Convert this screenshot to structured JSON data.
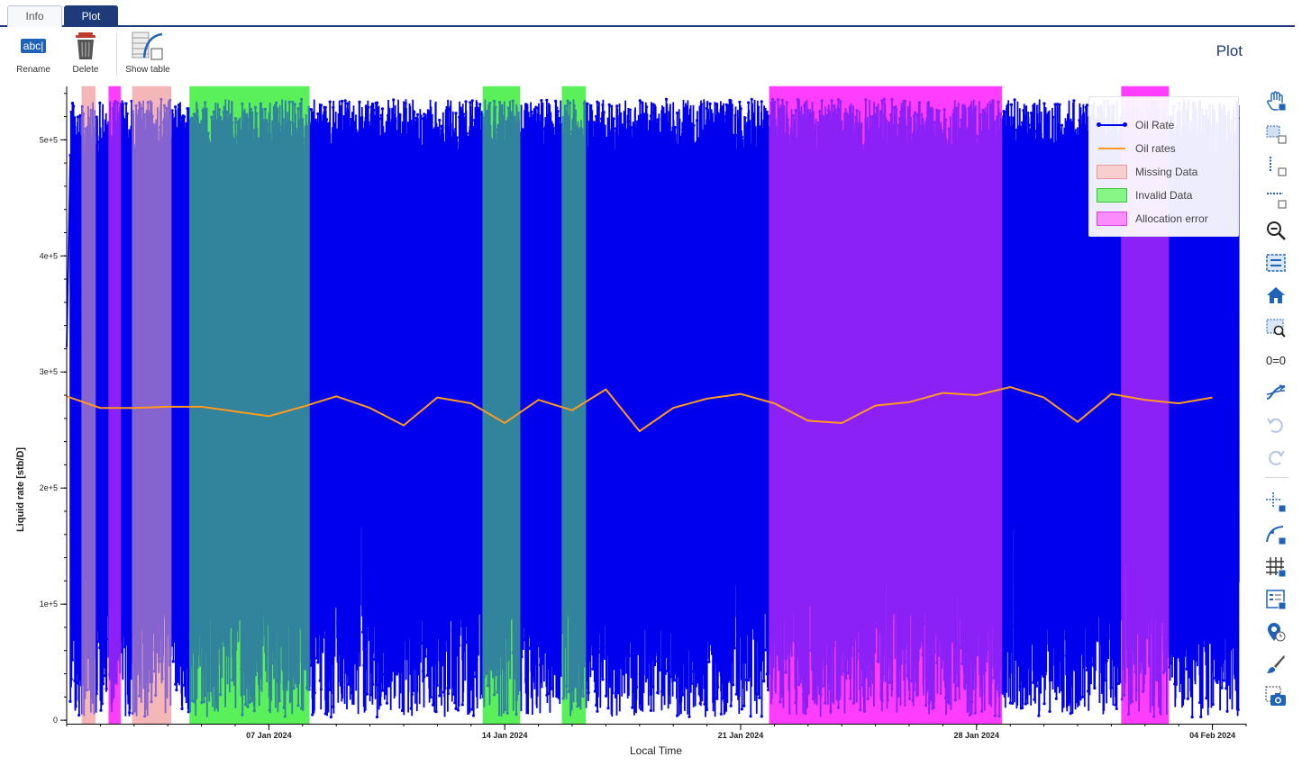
{
  "tabs": [
    {
      "label": "Info",
      "active": false
    },
    {
      "label": "Plot",
      "active": true
    }
  ],
  "toolbar": {
    "rename_label": "Rename",
    "rename_icon_text": "abc|",
    "delete_label": "Delete",
    "show_table_label": "Show table"
  },
  "page_title": "Plot",
  "sidebar_icons": [
    "pan-icon",
    "box-zoom-icon",
    "x-zoom-icon",
    "y-zoom-icon",
    "zoom-icon",
    "fit-icon",
    "home-icon",
    "reset-zoom-icon",
    "aspect-ratio-icon",
    "smooth-icon",
    "undo-icon",
    "redo-icon",
    "crosshair-icon",
    "point-select-icon",
    "grid-icon",
    "legend-icon",
    "tooltip-icon",
    "brush-icon",
    "screenshot-icon"
  ],
  "chart_data": {
    "type": "line",
    "xlabel": "Local Time",
    "ylabel": "Liquid rate [stb/D]",
    "x_range": [
      "2024-01-01",
      "2024-02-05"
    ],
    "ylim": [
      -3000,
      546000
    ],
    "x_ticks": [
      "07 Jan 2024",
      "14 Jan 2024",
      "21 Jan 2024",
      "28 Jan 2024",
      "04 Feb 2024"
    ],
    "y_ticks": [
      {
        "value": 0,
        "label": "0"
      },
      {
        "value": 100000,
        "label": "1e+5"
      },
      {
        "value": 200000,
        "label": "2e+5"
      },
      {
        "value": 300000,
        "label": "3e+5"
      },
      {
        "value": 400000,
        "label": "4e+5"
      },
      {
        "value": 500000,
        "label": "5e+5"
      }
    ],
    "colors": {
      "oil_rate": "#0000ee",
      "oil_rates": "#ff9a1f",
      "missing": "#f4b6b6",
      "invalid": "#59f059",
      "allocation": "#ff3dff"
    },
    "series": [
      {
        "name": "Oil Rate",
        "style": "line-markers",
        "description_range": [
          0,
          545000
        ],
        "approx_envelope_max": 535000
      },
      {
        "name": "Oil rates",
        "style": "line",
        "x": [
          "2024-01-01",
          "2024-01-02",
          "2024-01-03",
          "2024-01-04",
          "2024-01-05",
          "2024-01-06",
          "2024-01-07",
          "2024-01-08",
          "2024-01-09",
          "2024-01-10",
          "2024-01-11",
          "2024-01-12",
          "2024-01-13",
          "2024-01-14",
          "2024-01-15",
          "2024-01-16",
          "2024-01-17",
          "2024-01-18",
          "2024-01-19",
          "2024-01-20",
          "2024-01-21",
          "2024-01-22",
          "2024-01-23",
          "2024-01-24",
          "2024-01-25",
          "2024-01-26",
          "2024-01-27",
          "2024-01-28",
          "2024-01-29",
          "2024-01-30",
          "2024-01-31",
          "2024-02-01",
          "2024-02-02",
          "2024-02-03",
          "2024-02-04"
        ],
        "y": [
          279000,
          269000,
          269000,
          270000,
          270000,
          266000,
          262000,
          270000,
          279000,
          269000,
          254000,
          278000,
          273000,
          256000,
          276000,
          267000,
          285000,
          249000,
          269000,
          277000,
          281000,
          273000,
          258000,
          256000,
          271000,
          274000,
          282000,
          280000,
          287000,
          278000,
          257000,
          281000,
          276000,
          273000,
          278000
        ]
      }
    ],
    "spans": [
      {
        "name": "Missing Data",
        "x0": "2024-01-01",
        "x1": "2024-01-01"
      },
      {
        "name": "Allocation error",
        "x0": "2024-01-02",
        "x1": "2024-01-02"
      },
      {
        "name": "Missing Data",
        "x0": "2024-01-02",
        "x1": "2024-01-04"
      },
      {
        "name": "Invalid Data",
        "x0": "2024-01-04",
        "x1": "2024-01-08"
      },
      {
        "name": "Invalid Data",
        "x0": "2024-01-13",
        "x1": "2024-01-14"
      },
      {
        "name": "Invalid Data",
        "x0": "2024-01-15",
        "x1": "2024-01-16"
      },
      {
        "name": "Allocation error",
        "x0": "2024-01-21",
        "x1": "2024-01-28"
      },
      {
        "name": "Allocation error",
        "x0": "2024-02-01",
        "x1": "2024-02-02"
      }
    ],
    "legend": {
      "position": "top-right",
      "items": [
        {
          "label": "Oil Rate",
          "kind": "line-markers",
          "color": "#0000ee"
        },
        {
          "label": "Oil rates",
          "kind": "line",
          "color": "#ff9a1f"
        },
        {
          "label": "Missing Data",
          "kind": "patch",
          "color": "#f4b6b6"
        },
        {
          "label": "Invalid Data",
          "kind": "patch",
          "color": "#59f059"
        },
        {
          "label": "Allocation error",
          "kind": "patch",
          "color": "#ff3dff"
        }
      ]
    }
  }
}
